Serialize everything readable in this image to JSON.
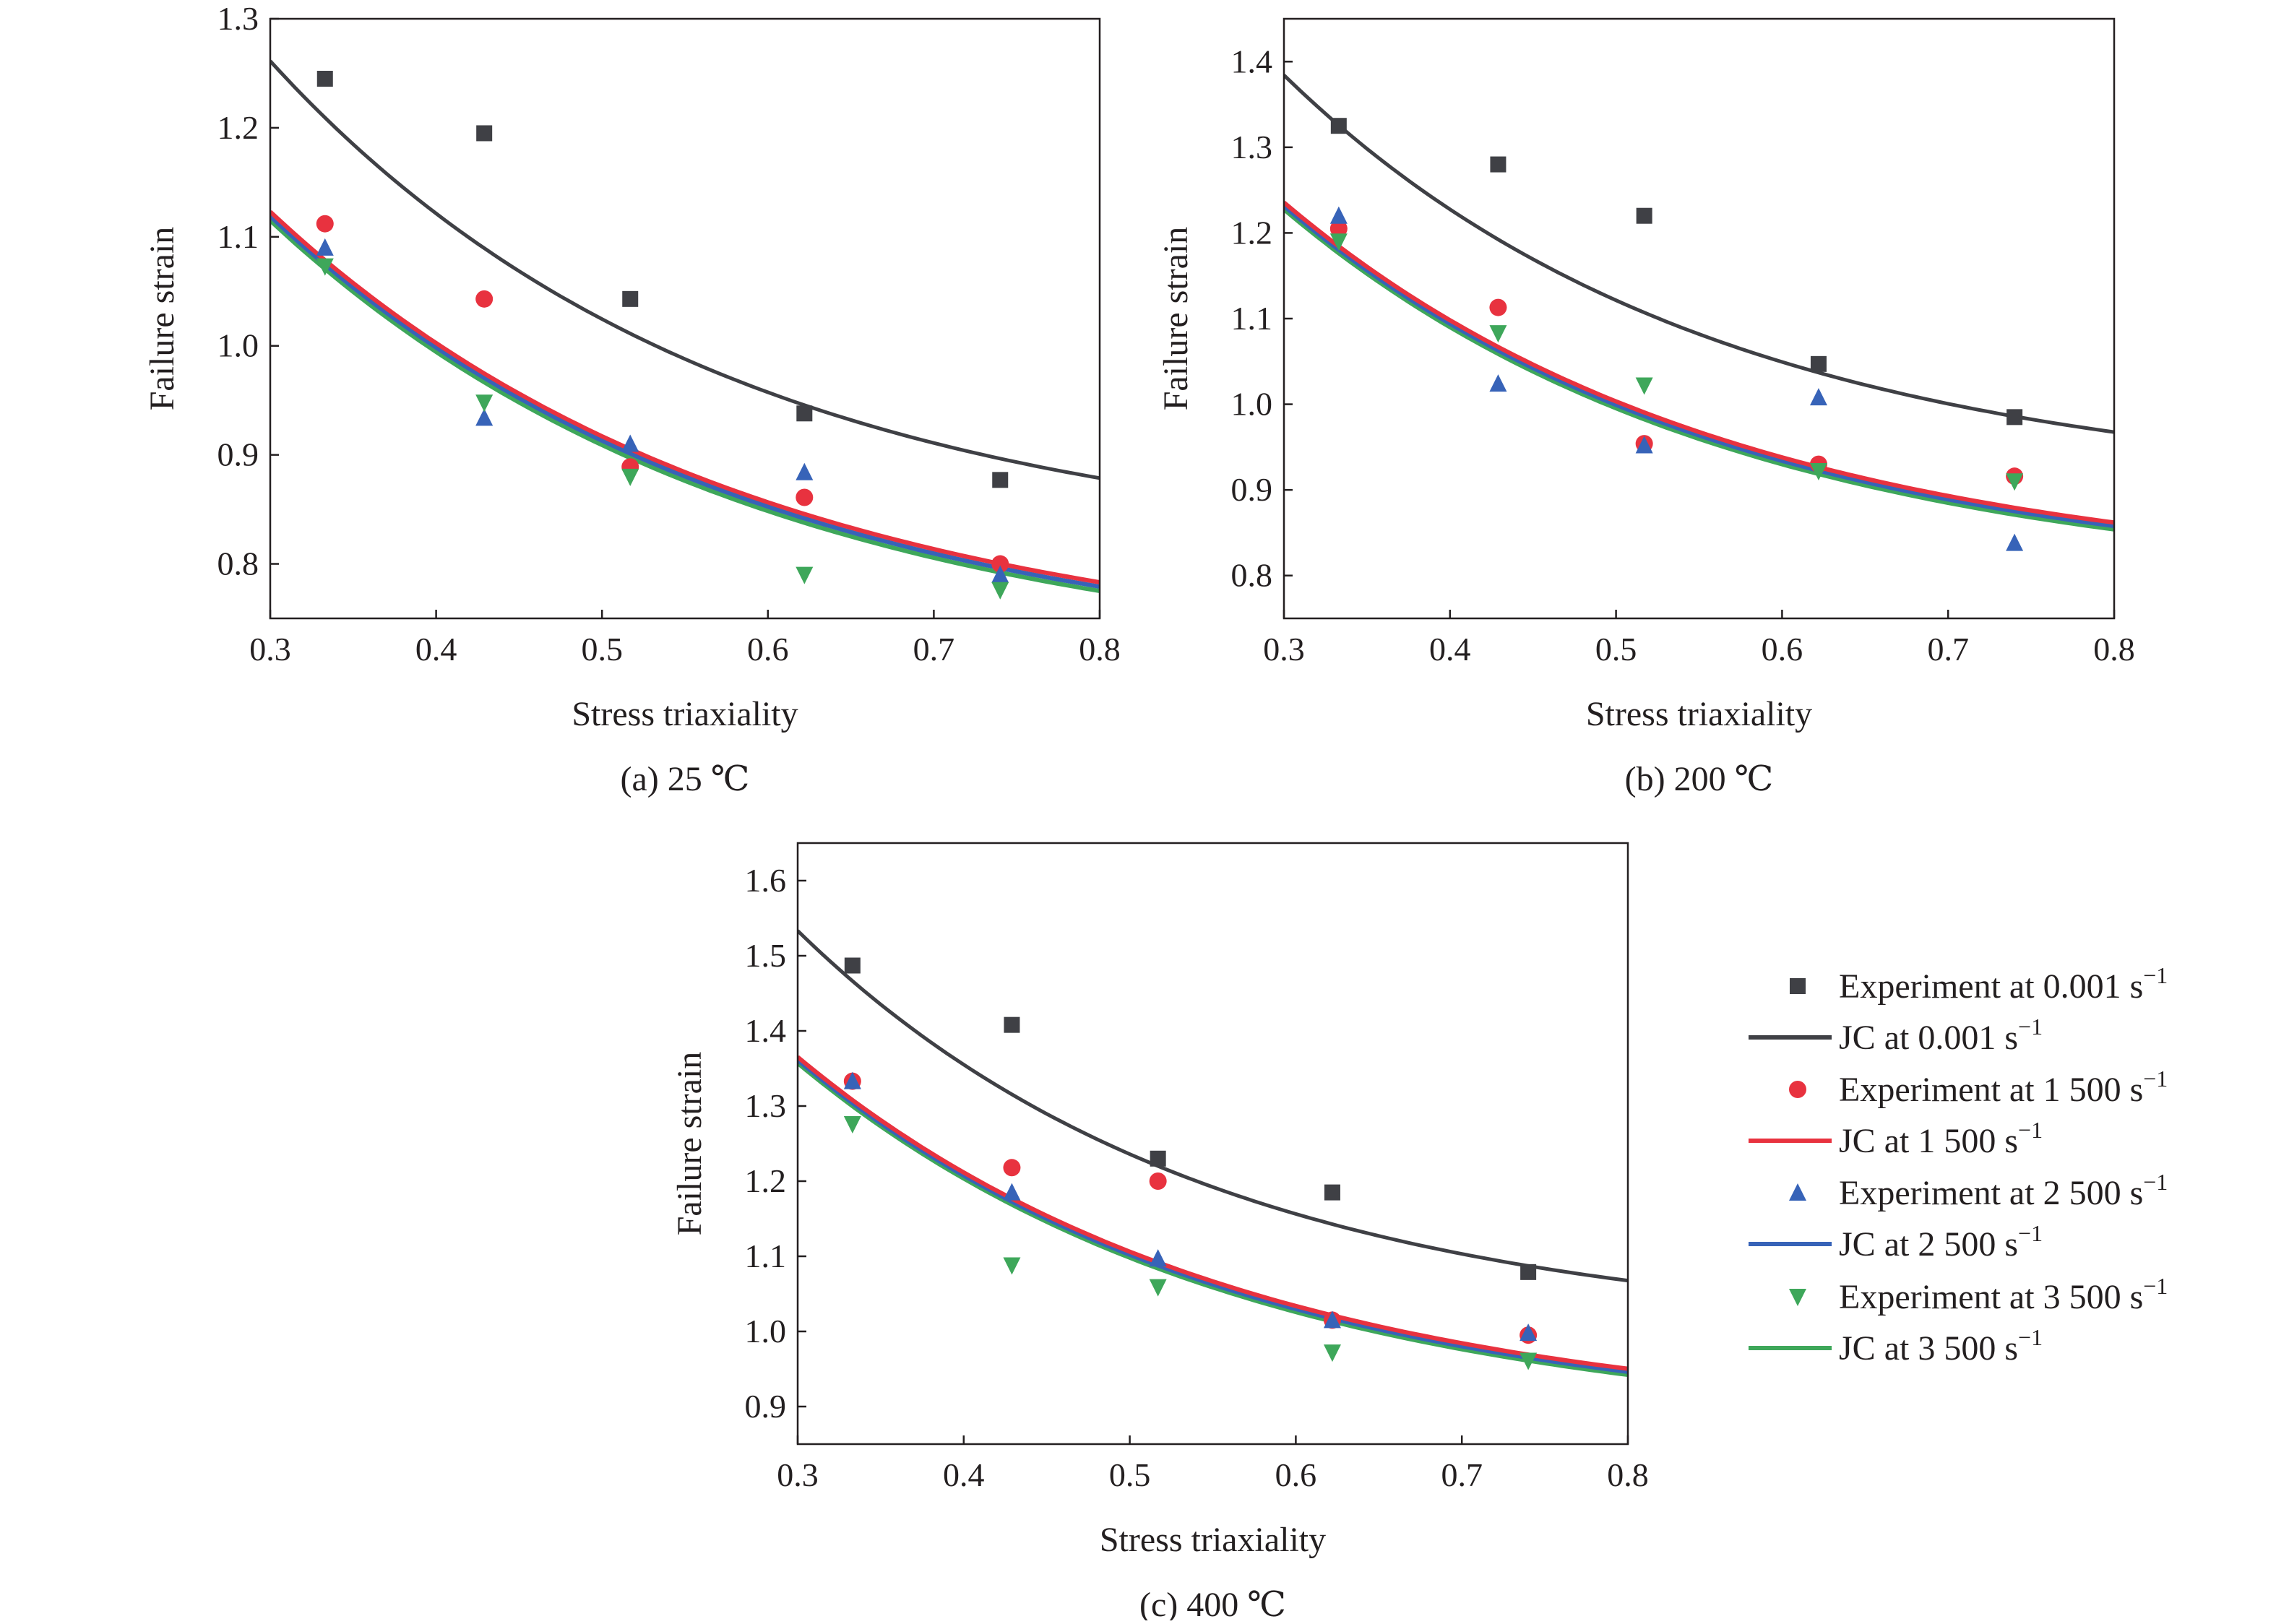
{
  "legend": {
    "position": "right-bottom",
    "items": [
      {
        "label": "Experiment at 0.001 s",
        "sup": "−1",
        "kind": "marker",
        "series": "s0"
      },
      {
        "label": "JC at 0.001 s",
        "sup": "−1",
        "kind": "line",
        "series": "s0"
      },
      {
        "label": "Experiment at 1 500 s",
        "sup": "−1",
        "kind": "marker",
        "series": "s1"
      },
      {
        "label": "JC at 1 500 s",
        "sup": "−1",
        "kind": "line",
        "series": "s1"
      },
      {
        "label": "Experiment at 2 500 s",
        "sup": "−1",
        "kind": "marker",
        "series": "s2"
      },
      {
        "label": "JC at 2 500 s",
        "sup": "−1",
        "kind": "line",
        "series": "s2"
      },
      {
        "label": "Experiment at 3 500 s",
        "sup": "−1",
        "kind": "marker",
        "series": "s3"
      },
      {
        "label": "JC at 3 500 s",
        "sup": "−1",
        "kind": "line",
        "series": "s3"
      }
    ]
  },
  "series_style": {
    "s0": {
      "color": "#3f4045",
      "marker": "square"
    },
    "s1": {
      "color": "#e8323f",
      "marker": "circle"
    },
    "s2": {
      "color": "#3763b8",
      "marker": "triangle-up"
    },
    "s3": {
      "color": "#3ea75a",
      "marker": "triangle-down"
    }
  },
  "chart_data": [
    {
      "type": "scatter+line",
      "caption": "(a) 25 ℃",
      "xlabel": "Stress triaxiality",
      "ylabel": "Failure strain",
      "xlim": [
        0.3,
        0.8
      ],
      "ylim": [
        0.75,
        1.3
      ],
      "xticks": [
        "0.3",
        "0.4",
        "0.5",
        "0.6",
        "0.7",
        "0.8"
      ],
      "yticks": [
        "0.8",
        "0.9",
        "1.0",
        "1.1",
        "1.2",
        "1.3"
      ],
      "x": [
        0.333,
        0.429,
        0.517,
        0.622,
        0.74
      ],
      "experiments": {
        "s0": [
          1.245,
          1.195,
          1.043,
          0.938,
          0.877
        ],
        "s1": [
          1.112,
          1.043,
          0.889,
          0.861,
          0.8
        ],
        "s2": [
          1.09,
          0.934,
          0.91,
          0.884,
          0.79
        ],
        "s3": [
          1.073,
          0.948,
          0.88,
          0.79,
          0.776
        ]
      },
      "jc_model": "D1 + D2*exp(D3*x)",
      "jc_fits": {
        "s0": [
          0.806,
          1.369,
          -3.67
        ],
        "s1": [
          0.709,
          1.162,
          -3.44
        ],
        "s2": [
          0.705,
          1.162,
          -3.44
        ],
        "s3": [
          0.701,
          1.162,
          -3.44
        ]
      }
    },
    {
      "type": "scatter+line",
      "caption": "(b) 200 ℃",
      "xlabel": "Stress triaxiality",
      "ylabel": "Failure strain",
      "xlim": [
        0.3,
        0.8
      ],
      "ylim": [
        0.75,
        1.45
      ],
      "xticks": [
        "0.3",
        "0.4",
        "0.5",
        "0.6",
        "0.7",
        "0.8"
      ],
      "yticks": [
        "0.8",
        "0.9",
        "1.0",
        "1.1",
        "1.2",
        "1.3",
        "1.4"
      ],
      "x": [
        0.333,
        0.429,
        0.517,
        0.622,
        0.74
      ],
      "experiments": {
        "s0": [
          1.325,
          1.28,
          1.22,
          1.047,
          0.985
        ],
        "s1": [
          1.205,
          1.113,
          0.954,
          0.93,
          0.916
        ],
        "s2": [
          1.22,
          1.024,
          0.952,
          1.008,
          0.838
        ],
        "s3": [
          1.19,
          1.083,
          1.022,
          0.922,
          0.91
        ]
      },
      "jc_model": "D1 + D2*exp(D3*x)",
      "jc_fits": {
        "s0": [
          0.898,
          1.562,
          -3.89
        ],
        "s1": [
          0.793,
          1.351,
          -3.72
        ],
        "s2": [
          0.789,
          1.351,
          -3.72
        ],
        "s3": [
          0.785,
          1.351,
          -3.72
        ]
      }
    },
    {
      "type": "scatter+line",
      "caption": "(c) 400 ℃",
      "xlabel": "Stress triaxiality",
      "ylabel": "Failure strain",
      "xlim": [
        0.3,
        0.8
      ],
      "ylim": [
        0.85,
        1.65
      ],
      "xticks": [
        "0.3",
        "0.4",
        "0.5",
        "0.6",
        "0.7",
        "0.8"
      ],
      "yticks": [
        "0.9",
        "1.0",
        "1.1",
        "1.2",
        "1.3",
        "1.4",
        "1.5",
        "1.6"
      ],
      "x": [
        0.333,
        0.429,
        0.517,
        0.622,
        0.74
      ],
      "experiments": {
        "s0": [
          1.487,
          1.408,
          1.23,
          1.185,
          1.079
        ],
        "s1": [
          1.333,
          1.218,
          1.2,
          1.015,
          0.995
        ],
        "s2": [
          1.333,
          1.185,
          1.097,
          1.015,
          0.998
        ],
        "s3": [
          1.276,
          1.088,
          1.059,
          0.972,
          0.961
        ]
      },
      "jc_model": "D1 + D2*exp(D3*x)",
      "jc_fits": {
        "s0": [
          0.996,
          1.8,
          -4.03
        ],
        "s1": [
          0.876,
          1.516,
          -3.77
        ],
        "s2": [
          0.872,
          1.516,
          -3.77
        ],
        "s3": [
          0.868,
          1.516,
          -3.77
        ]
      }
    }
  ]
}
